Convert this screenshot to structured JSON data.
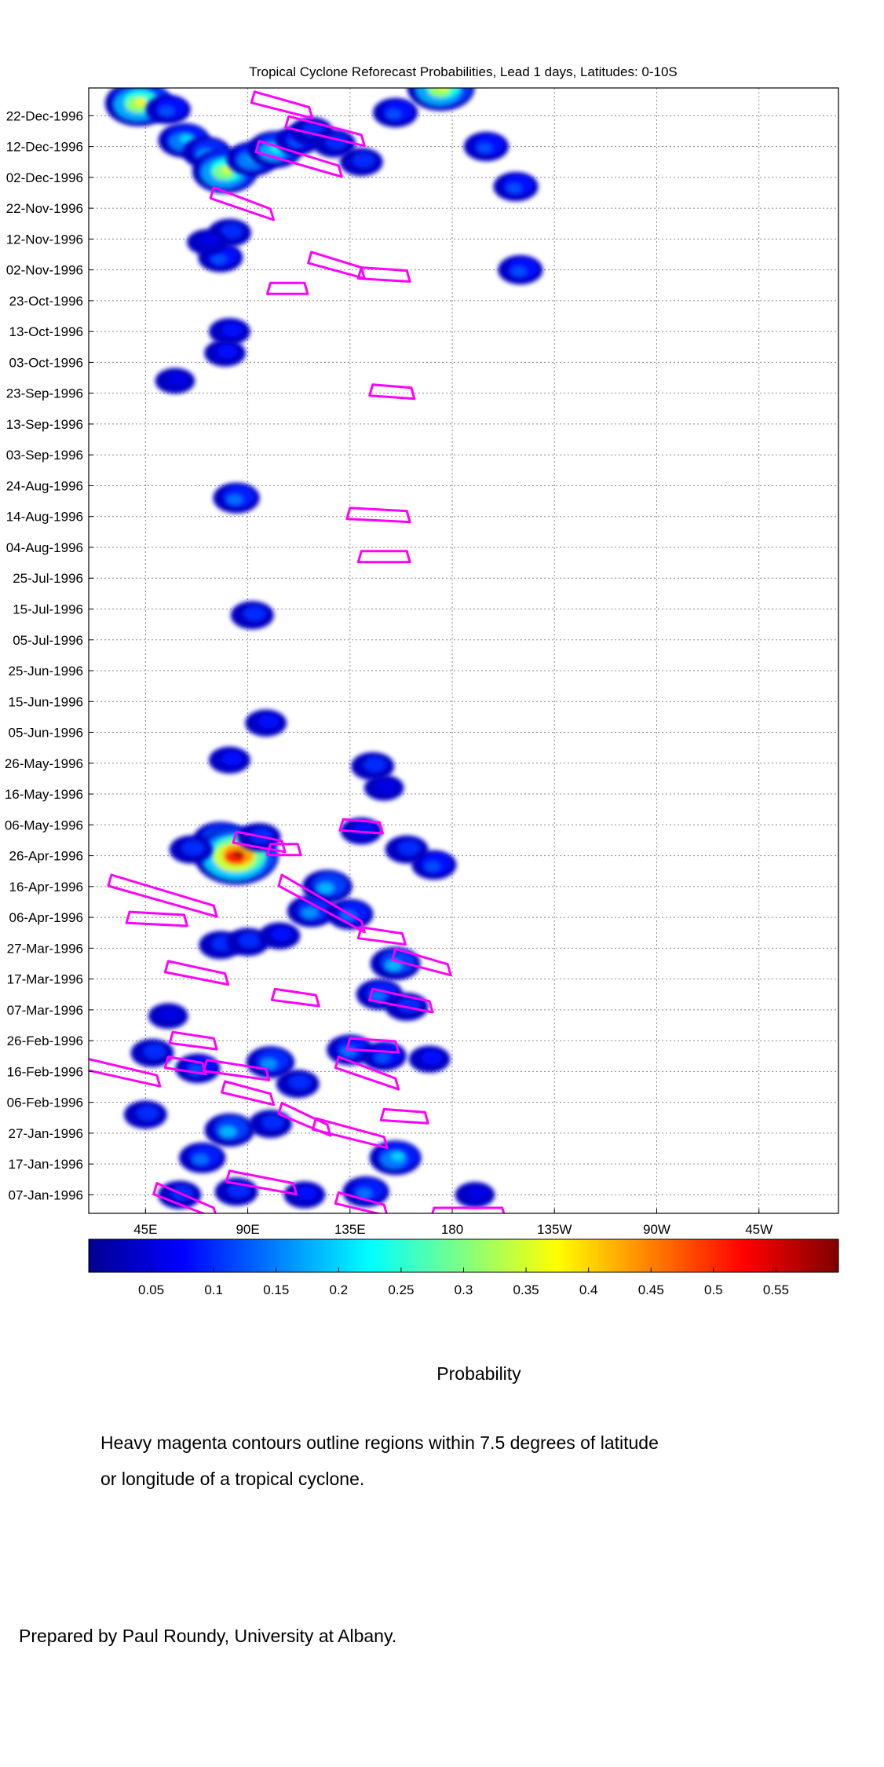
{
  "title": "Tropical Cyclone Reforecast Probabilities, Lead 1 days, Latitudes: 0-10S",
  "colorbar": {
    "label": "Probability",
    "ticks": [
      "0.05",
      "0.1",
      "0.15",
      "0.2",
      "0.25",
      "0.3",
      "0.35",
      "0.4",
      "0.45",
      "0.5",
      "0.55"
    ],
    "range": [
      0,
      0.6
    ]
  },
  "notes": {
    "line1": "Heavy magenta contours outline regions within 7.5 degrees of latitude",
    "line2": "or longitude of a tropical cyclone."
  },
  "credit": "Prepared by Paul Roundy, University at Albany.",
  "colors": {
    "contour": "#ff00ff",
    "grid": "#888888"
  },
  "chart_data": {
    "type": "heatmap",
    "title": "Tropical Cyclone Reforecast Probabilities, Lead 1 days, Latitudes: 0-10S",
    "xlabel": "",
    "ylabel": "",
    "x_ticks": [
      "45E",
      "90E",
      "135E",
      "180",
      "135W",
      "90W",
      "45W"
    ],
    "x_tick_values": [
      45,
      90,
      135,
      180,
      225,
      270,
      315
    ],
    "xlim": [
      20,
      350
    ],
    "y_ticks": [
      "07-Jan-1996",
      "17-Jan-1996",
      "27-Jan-1996",
      "06-Feb-1996",
      "16-Feb-1996",
      "26-Feb-1996",
      "07-Mar-1996",
      "17-Mar-1996",
      "27-Mar-1996",
      "06-Apr-1996",
      "16-Apr-1996",
      "26-Apr-1996",
      "06-May-1996",
      "16-May-1996",
      "26-May-1996",
      "05-Jun-1996",
      "15-Jun-1996",
      "25-Jun-1996",
      "05-Jul-1996",
      "15-Jul-1996",
      "25-Jul-1996",
      "04-Aug-1996",
      "14-Aug-1996",
      "24-Aug-1996",
      "03-Sep-1996",
      "13-Sep-1996",
      "23-Sep-1996",
      "03-Oct-1996",
      "13-Oct-1996",
      "23-Oct-1996",
      "02-Nov-1996",
      "12-Nov-1996",
      "22-Nov-1996",
      "02-Dec-1996",
      "12-Dec-1996",
      "22-Dec-1996"
    ],
    "ylim": [
      "01-Jan-1996",
      "31-Dec-1996"
    ],
    "grid": true,
    "colorbar_range": [
      0,
      0.6
    ],
    "blobs": [
      {
        "lon": 42,
        "date": "1996-12-26",
        "p": 0.38
      },
      {
        "lon": 55,
        "date": "1996-12-24",
        "p": 0.12
      },
      {
        "lon": 62,
        "date": "1996-12-14",
        "p": 0.2
      },
      {
        "lon": 72,
        "date": "1996-12-10",
        "p": 0.16
      },
      {
        "lon": 80,
        "date": "1996-12-04",
        "p": 0.36
      },
      {
        "lon": 92,
        "date": "1996-12-08",
        "p": 0.2
      },
      {
        "lon": 102,
        "date": "1996-12-11",
        "p": 0.24
      },
      {
        "lon": 112,
        "date": "1996-12-14",
        "p": 0.12
      },
      {
        "lon": 118,
        "date": "1996-12-17",
        "p": 0.1
      },
      {
        "lon": 128,
        "date": "1996-12-13",
        "p": 0.1
      },
      {
        "lon": 140,
        "date": "1996-12-07",
        "p": 0.1
      },
      {
        "lon": 155,
        "date": "1996-12-23",
        "p": 0.12
      },
      {
        "lon": 175,
        "date": "1996-12-31",
        "p": 0.38
      },
      {
        "lon": 195,
        "date": "1996-12-12",
        "p": 0.12
      },
      {
        "lon": 208,
        "date": "1996-11-29",
        "p": 0.12
      },
      {
        "lon": 210,
        "date": "1996-11-02",
        "p": 0.12
      },
      {
        "lon": 78,
        "date": "1996-11-06",
        "p": 0.12
      },
      {
        "lon": 82,
        "date": "1996-11-14",
        "p": 0.1
      },
      {
        "lon": 72,
        "date": "1996-11-11",
        "p": 0.06
      },
      {
        "lon": 82,
        "date": "1996-10-13",
        "p": 0.08
      },
      {
        "lon": 80,
        "date": "1996-10-06",
        "p": 0.08
      },
      {
        "lon": 58,
        "date": "1996-09-27",
        "p": 0.06
      },
      {
        "lon": 85,
        "date": "1996-08-20",
        "p": 0.14
      },
      {
        "lon": 92,
        "date": "1996-07-13",
        "p": 0.1
      },
      {
        "lon": 98,
        "date": "1996-06-08",
        "p": 0.08
      },
      {
        "lon": 82,
        "date": "1996-05-27",
        "p": 0.08
      },
      {
        "lon": 145,
        "date": "1996-05-25",
        "p": 0.1
      },
      {
        "lon": 150,
        "date": "1996-05-18",
        "p": 0.06
      },
      {
        "lon": 140,
        "date": "1996-05-04",
        "p": 0.08
      },
      {
        "lon": 160,
        "date": "1996-04-28",
        "p": 0.1
      },
      {
        "lon": 172,
        "date": "1996-04-23",
        "p": 0.12
      },
      {
        "lon": 78,
        "date": "1996-05-01",
        "p": 0.24
      },
      {
        "lon": 85,
        "date": "1996-04-26",
        "p": 0.58
      },
      {
        "lon": 95,
        "date": "1996-05-02",
        "p": 0.1
      },
      {
        "lon": 65,
        "date": "1996-04-28",
        "p": 0.1
      },
      {
        "lon": 125,
        "date": "1996-04-16",
        "p": 0.18
      },
      {
        "lon": 118,
        "date": "1996-04-08",
        "p": 0.16
      },
      {
        "lon": 135,
        "date": "1996-04-07",
        "p": 0.14
      },
      {
        "lon": 78,
        "date": "1996-03-28",
        "p": 0.1
      },
      {
        "lon": 90,
        "date": "1996-03-29",
        "p": 0.1
      },
      {
        "lon": 104,
        "date": "1996-03-31",
        "p": 0.08
      },
      {
        "lon": 155,
        "date": "1996-03-22",
        "p": 0.18
      },
      {
        "lon": 148,
        "date": "1996-03-12",
        "p": 0.14
      },
      {
        "lon": 160,
        "date": "1996-03-08",
        "p": 0.1
      },
      {
        "lon": 55,
        "date": "1996-03-05",
        "p": 0.06
      },
      {
        "lon": 48,
        "date": "1996-02-22",
        "p": 0.1
      },
      {
        "lon": 68,
        "date": "1996-02-17",
        "p": 0.12
      },
      {
        "lon": 100,
        "date": "1996-02-19",
        "p": 0.16
      },
      {
        "lon": 112,
        "date": "1996-02-12",
        "p": 0.1
      },
      {
        "lon": 135,
        "date": "1996-02-23",
        "p": 0.14
      },
      {
        "lon": 150,
        "date": "1996-02-21",
        "p": 0.12
      },
      {
        "lon": 170,
        "date": "1996-02-20",
        "p": 0.08
      },
      {
        "lon": 45,
        "date": "1996-02-02",
        "p": 0.1
      },
      {
        "lon": 82,
        "date": "1996-01-28",
        "p": 0.18
      },
      {
        "lon": 70,
        "date": "1996-01-19",
        "p": 0.14
      },
      {
        "lon": 100,
        "date": "1996-01-30",
        "p": 0.1
      },
      {
        "lon": 155,
        "date": "1996-01-19",
        "p": 0.2
      },
      {
        "lon": 142,
        "date": "1996-01-08",
        "p": 0.14
      },
      {
        "lon": 60,
        "date": "1996-01-07",
        "p": 0.1
      },
      {
        "lon": 85,
        "date": "1996-01-08",
        "p": 0.1
      },
      {
        "lon": 115,
        "date": "1996-01-07",
        "p": 0.08
      },
      {
        "lon": 190,
        "date": "1996-01-07",
        "p": 0.06
      }
    ],
    "cyclone_contours": [
      {
        "lon": [
          93,
          117
        ],
        "dates": [
          "1996-12-28",
          "1996-12-23"
        ]
      },
      {
        "lon": [
          108,
          140
        ],
        "dates": [
          "1996-12-20",
          "1996-12-14"
        ]
      },
      {
        "lon": [
          95,
          130
        ],
        "dates": [
          "1996-12-12",
          "1996-12-04"
        ]
      },
      {
        "lon": [
          75,
          100
        ],
        "dates": [
          "1996-11-27",
          "1996-11-20"
        ]
      },
      {
        "lon": [
          118,
          140
        ],
        "dates": [
          "1996-11-06",
          "1996-11-01"
        ]
      },
      {
        "lon": [
          140,
          160
        ],
        "dates": [
          "1996-11-01",
          "1996-10-31"
        ]
      },
      {
        "lon": [
          100,
          115
        ],
        "dates": [
          "1996-10-27",
          "1996-10-27"
        ]
      },
      {
        "lon": [
          145,
          162
        ],
        "dates": [
          "1996-09-24",
          "1996-09-23"
        ]
      },
      {
        "lon": [
          135,
          160
        ],
        "dates": [
          "1996-08-15",
          "1996-08-14"
        ]
      },
      {
        "lon": [
          140,
          160
        ],
        "dates": [
          "1996-08-01",
          "1996-08-01"
        ]
      },
      {
        "lon": [
          132,
          148
        ],
        "dates": [
          "1996-05-06",
          "1996-05-05"
        ]
      },
      {
        "lon": [
          85,
          105
        ],
        "dates": [
          "1996-05-02",
          "1996-04-29"
        ]
      },
      {
        "lon": [
          100,
          112
        ],
        "dates": [
          "1996-04-28",
          "1996-04-28"
        ]
      },
      {
        "lon": [
          30,
          75
        ],
        "dates": [
          "1996-04-18",
          "1996-04-08"
        ]
      },
      {
        "lon": [
          38,
          62
        ],
        "dates": [
          "1996-04-06",
          "1996-04-05"
        ]
      },
      {
        "lon": [
          105,
          140
        ],
        "dates": [
          "1996-04-18",
          "1996-04-03"
        ]
      },
      {
        "lon": [
          140,
          158
        ],
        "dates": [
          "1996-04-01",
          "1996-03-30"
        ]
      },
      {
        "lon": [
          155,
          178
        ],
        "dates": [
          "1996-03-25",
          "1996-03-20"
        ]
      },
      {
        "lon": [
          55,
          80
        ],
        "dates": [
          "1996-03-21",
          "1996-03-17"
        ]
      },
      {
        "lon": [
          102,
          120
        ],
        "dates": [
          "1996-03-12",
          "1996-03-10"
        ]
      },
      {
        "lon": [
          145,
          170
        ],
        "dates": [
          "1996-03-12",
          "1996-03-08"
        ]
      },
      {
        "lon": [
          57,
          75
        ],
        "dates": [
          "1996-02-27",
          "1996-02-25"
        ]
      },
      {
        "lon": [
          135,
          155
        ],
        "dates": [
          "1996-02-25",
          "1996-02-24"
        ]
      },
      {
        "lon": [
          10,
          50
        ],
        "dates": [
          "1996-02-20",
          "1996-02-13"
        ]
      },
      {
        "lon": [
          55,
          70
        ],
        "dates": [
          "1996-02-19",
          "1996-02-17"
        ]
      },
      {
        "lon": [
          72,
          98
        ],
        "dates": [
          "1996-02-18",
          "1996-02-15"
        ]
      },
      {
        "lon": [
          130,
          155
        ],
        "dates": [
          "1996-02-19",
          "1996-02-12"
        ]
      },
      {
        "lon": [
          80,
          100
        ],
        "dates": [
          "1996-02-11",
          "1996-02-07"
        ]
      },
      {
        "lon": [
          105,
          125
        ],
        "dates": [
          "1996-02-04",
          "1996-01-28"
        ]
      },
      {
        "lon": [
          120,
          150
        ],
        "dates": [
          "1996-01-30",
          "1996-01-24"
        ]
      },
      {
        "lon": [
          150,
          168
        ],
        "dates": [
          "1996-02-02",
          "1996-02-01"
        ]
      },
      {
        "lon": [
          82,
          110
        ],
        "dates": [
          "1996-01-13",
          "1996-01-09"
        ]
      },
      {
        "lon": [
          50,
          75
        ],
        "dates": [
          "1996-01-09",
          "1996-01-01"
        ]
      },
      {
        "lon": [
          130,
          150
        ],
        "dates": [
          "1996-01-06",
          "1996-01-02"
        ]
      },
      {
        "lon": [
          172,
          202
        ],
        "dates": [
          "1996-01-01",
          "1996-01-01"
        ]
      }
    ]
  }
}
